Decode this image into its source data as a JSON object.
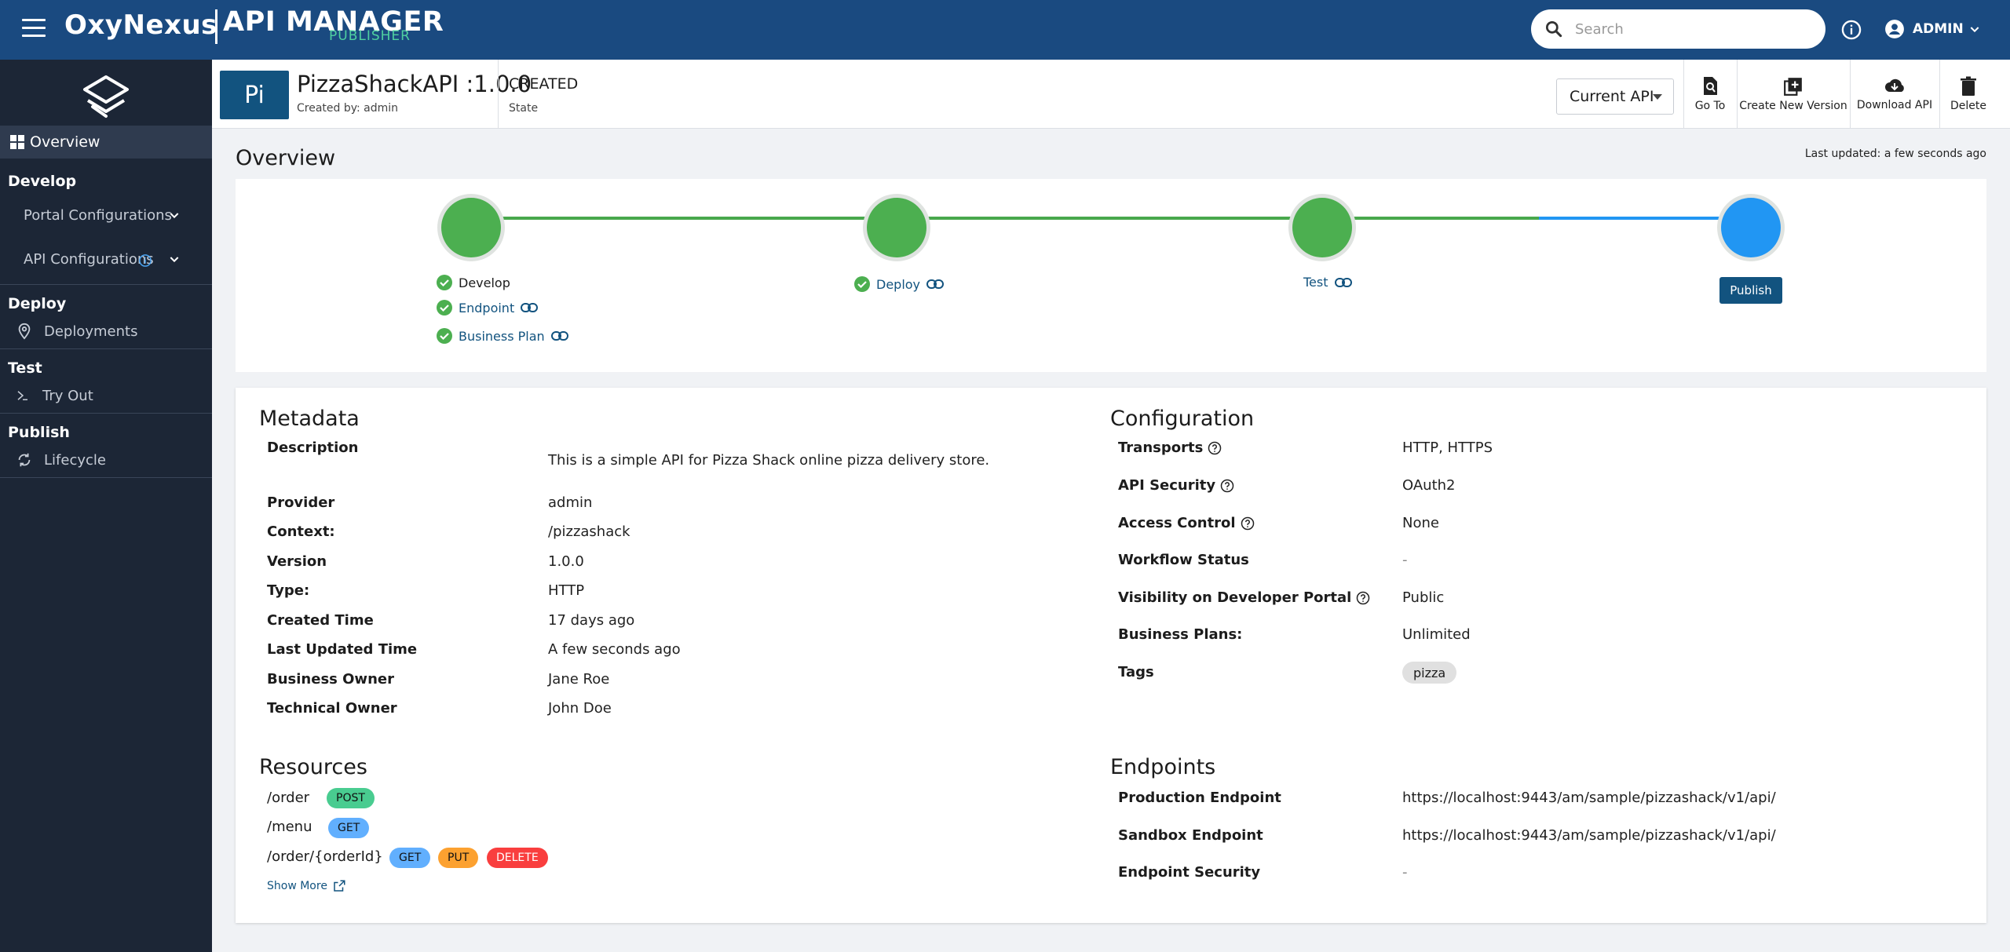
{
  "header": {
    "brand": "OxyNexus",
    "product": "API MANAGER",
    "product_sub": "PUBLISHER",
    "search_placeholder": "Search",
    "user": "ADMIN"
  },
  "sidebar": {
    "overview": "Overview",
    "sections": [
      {
        "title": "Develop",
        "items": [
          "Portal Configurations",
          "API Configurations"
        ]
      },
      {
        "title": "Deploy",
        "items": [
          "Deployments"
        ]
      },
      {
        "title": "Test",
        "items": [
          "Try Out"
        ]
      },
      {
        "title": "Publish",
        "items": [
          "Lifecycle"
        ]
      }
    ]
  },
  "api": {
    "thumb": "Pi",
    "name": "PizzaShackAPI :1.0.0",
    "created_by": "Created by: admin",
    "state_value": "CREATED",
    "state_label": "State",
    "version_select": "Current API",
    "actions": [
      "Go To",
      "Create New Version",
      "Download API",
      "Delete"
    ]
  },
  "page": {
    "title": "Overview",
    "last_updated": "Last updated: a few seconds ago"
  },
  "lifecycle": {
    "develop": "Develop",
    "endpoint": "Endpoint",
    "business_plan": "Business Plan",
    "deploy": "Deploy",
    "test": "Test",
    "publish": "Publish"
  },
  "metadata": {
    "title": "Metadata",
    "rows": [
      {
        "key": "Description",
        "value": "This is a simple API for Pizza Shack online pizza delivery store."
      },
      {
        "key": "Provider",
        "value": "admin"
      },
      {
        "key": "Context:",
        "value": "/pizzashack"
      },
      {
        "key": "Version",
        "value": "1.0.0"
      },
      {
        "key": "Type:",
        "value": "HTTP"
      },
      {
        "key": "Created Time",
        "value": "17 days ago"
      },
      {
        "key": "Last Updated Time",
        "value": "A few seconds ago"
      },
      {
        "key": "Business Owner",
        "value": "Jane Roe"
      },
      {
        "key": "Technical Owner",
        "value": "John Doe"
      }
    ]
  },
  "configuration": {
    "title": "Configuration",
    "rows": [
      {
        "key": "Transports",
        "value": "HTTP, HTTPS"
      },
      {
        "key": "API Security",
        "value": "OAuth2"
      },
      {
        "key": "Access Control",
        "value": "None"
      },
      {
        "key": "Workflow Status",
        "value": "-"
      },
      {
        "key": "Visibility on Developer Portal",
        "value": "Public"
      },
      {
        "key": "Business Plans:",
        "value": "Unlimited"
      },
      {
        "key": "Tags",
        "value": "pizza"
      }
    ]
  },
  "resources": {
    "title": "Resources",
    "items": [
      {
        "path": "/order",
        "methods": [
          "POST"
        ]
      },
      {
        "path": "/menu",
        "methods": [
          "GET"
        ]
      },
      {
        "path": "/order/{orderId}",
        "methods": [
          "GET",
          "PUT",
          "DELETE"
        ]
      }
    ],
    "show_more": "Show More"
  },
  "endpoints": {
    "title": "Endpoints",
    "rows": [
      {
        "key": "Production Endpoint",
        "value": "https://localhost:9443/am/sample/pizzashack/v1/api/"
      },
      {
        "key": "Sandbox Endpoint",
        "value": "https://localhost:9443/am/sample/pizzashack/v1/api/"
      },
      {
        "key": "Endpoint Security",
        "value": "-"
      }
    ]
  },
  "colors": {
    "topbar": "#1a4a80",
    "sidebar": "#1c2636",
    "complete": "#4caf50",
    "active": "#2196f3",
    "primary": "#12537f"
  }
}
